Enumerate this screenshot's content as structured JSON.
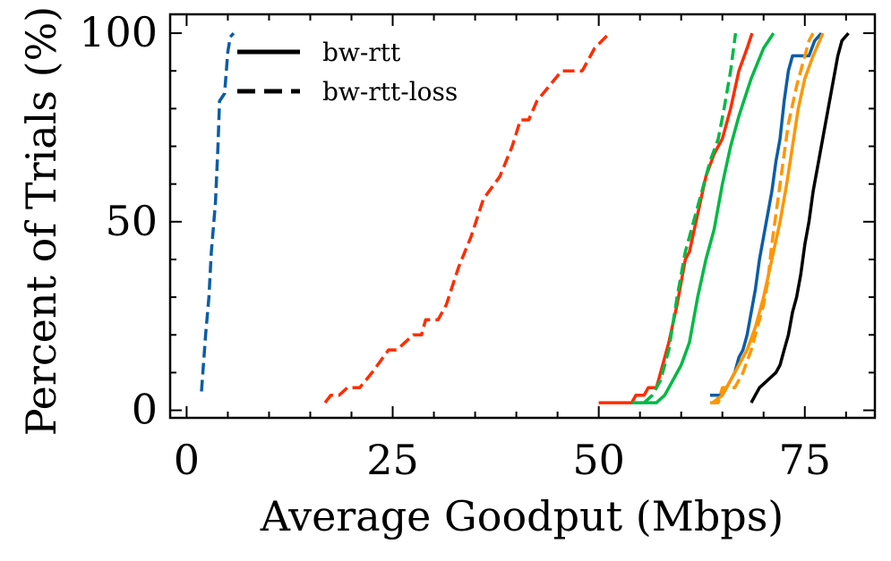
{
  "chart_data": {
    "type": "line",
    "title": "",
    "xlabel": "Average Goodput (Mbps)",
    "ylabel": "Percent of Trials (%)",
    "xlim": [
      -2,
      83.5
    ],
    "ylim": [
      -2,
      105
    ],
    "xticks": [
      0,
      25,
      50,
      75
    ],
    "yticks": [
      0,
      50,
      100
    ],
    "xtick_labels": [
      "0",
      "25",
      "50",
      "75"
    ],
    "ytick_labels": [
      "0",
      "50",
      "100"
    ],
    "legend_position": "top-left",
    "legend": [
      {
        "label": "bw-rtt",
        "style": "solid"
      },
      {
        "label": "bw-rtt-loss",
        "style": "dashed"
      }
    ],
    "series": [
      {
        "name": "blue bw-rtt-loss",
        "color": "#0C5DA5",
        "style": "dashed",
        "points": [
          [
            1.8,
            5
          ],
          [
            2.3,
            20
          ],
          [
            2.7,
            30
          ],
          [
            3.0,
            42
          ],
          [
            3.5,
            55
          ],
          [
            3.8,
            70
          ],
          [
            4.0,
            82
          ],
          [
            4.6,
            84
          ],
          [
            5.0,
            95
          ],
          [
            5.3,
            99
          ],
          [
            5.7,
            100
          ]
        ]
      },
      {
        "name": "red bw-rtt-loss",
        "color": "#FF2C00",
        "style": "dashed",
        "points": [
          [
            16.8,
            2
          ],
          [
            17.5,
            4
          ],
          [
            18.5,
            4
          ],
          [
            19.5,
            6
          ],
          [
            21,
            6
          ],
          [
            22.5,
            10
          ],
          [
            24.5,
            16
          ],
          [
            25.5,
            16
          ],
          [
            27.5,
            20
          ],
          [
            28.5,
            20
          ],
          [
            29,
            24
          ],
          [
            30.5,
            24
          ],
          [
            31.5,
            28
          ],
          [
            33,
            38
          ],
          [
            34.5,
            46
          ],
          [
            36,
            56
          ],
          [
            38,
            62
          ],
          [
            39.5,
            70
          ],
          [
            40.5,
            77
          ],
          [
            41.5,
            77
          ],
          [
            42.5,
            82
          ],
          [
            44,
            86
          ],
          [
            45.5,
            90
          ],
          [
            48,
            90
          ],
          [
            49.5,
            96
          ],
          [
            51.3,
            100
          ]
        ]
      },
      {
        "name": "red bw-rtt",
        "color": "#FF2C00",
        "style": "solid",
        "points": [
          [
            50,
            2
          ],
          [
            54,
            2
          ],
          [
            54.5,
            4
          ],
          [
            55.5,
            4
          ],
          [
            56,
            6
          ],
          [
            57,
            6
          ],
          [
            57.5,
            10
          ],
          [
            58.5,
            18
          ],
          [
            59.5,
            28
          ],
          [
            60.5,
            40
          ],
          [
            61,
            42
          ],
          [
            62,
            52
          ],
          [
            63,
            62
          ],
          [
            64,
            68
          ],
          [
            65,
            72
          ],
          [
            66,
            80
          ],
          [
            67,
            90
          ],
          [
            68,
            96
          ],
          [
            68.6,
            100
          ]
        ]
      },
      {
        "name": "green bw-rtt-loss",
        "color": "#00B945",
        "style": "dashed",
        "points": [
          [
            55.5,
            2
          ],
          [
            56.5,
            4
          ],
          [
            57.5,
            8
          ],
          [
            58.5,
            16
          ],
          [
            59.5,
            30
          ],
          [
            60.5,
            42
          ],
          [
            61.5,
            50
          ],
          [
            62.5,
            58
          ],
          [
            63.5,
            66
          ],
          [
            64.5,
            72
          ],
          [
            65.2,
            80
          ],
          [
            66,
            90
          ],
          [
            66.6,
            100
          ]
        ]
      },
      {
        "name": "green bw-rtt",
        "color": "#00B945",
        "style": "solid",
        "points": [
          [
            54,
            2
          ],
          [
            57,
            2
          ],
          [
            58,
            4
          ],
          [
            59,
            8
          ],
          [
            60,
            12
          ],
          [
            61,
            18
          ],
          [
            62,
            30
          ],
          [
            63,
            40
          ],
          [
            64,
            48
          ],
          [
            65,
            60
          ],
          [
            66,
            70
          ],
          [
            67,
            78
          ],
          [
            68.5,
            88
          ],
          [
            70,
            96
          ],
          [
            71.2,
            100
          ]
        ]
      },
      {
        "name": "blue bw-rtt",
        "color": "#0C5DA5",
        "style": "solid",
        "points": [
          [
            63.5,
            4
          ],
          [
            65,
            4
          ],
          [
            65.5,
            6
          ],
          [
            66.5,
            10
          ],
          [
            67,
            14
          ],
          [
            67.5,
            16
          ],
          [
            68,
            20
          ],
          [
            68.5,
            26
          ],
          [
            69,
            32
          ],
          [
            69.5,
            40
          ],
          [
            70,
            46
          ],
          [
            70.5,
            52
          ],
          [
            71,
            58
          ],
          [
            71.5,
            66
          ],
          [
            72,
            72
          ],
          [
            72.5,
            82
          ],
          [
            73,
            90
          ],
          [
            73.5,
            94
          ],
          [
            75.5,
            94
          ],
          [
            76.2,
            98
          ],
          [
            77,
            100
          ]
        ]
      },
      {
        "name": "orange bw-rtt-loss",
        "color": "#FF9500",
        "style": "dashed",
        "points": [
          [
            63.5,
            2
          ],
          [
            64.5,
            2
          ],
          [
            65,
            6
          ],
          [
            66.5,
            6
          ],
          [
            67.5,
            10
          ],
          [
            68.5,
            16
          ],
          [
            69.5,
            24
          ],
          [
            70,
            28
          ],
          [
            70.5,
            34
          ],
          [
            71,
            44
          ],
          [
            71.5,
            52
          ],
          [
            72,
            60
          ],
          [
            72.5,
            68
          ],
          [
            73,
            76
          ],
          [
            74,
            86
          ],
          [
            74.5,
            90
          ],
          [
            75,
            94
          ],
          [
            75.5,
            98
          ],
          [
            76,
            100
          ]
        ]
      },
      {
        "name": "orange bw-rtt",
        "color": "#FF9500",
        "style": "solid",
        "points": [
          [
            63.8,
            2
          ],
          [
            65,
            4
          ],
          [
            66,
            8
          ],
          [
            67,
            12
          ],
          [
            68,
            16
          ],
          [
            69,
            22
          ],
          [
            70,
            30
          ],
          [
            71,
            40
          ],
          [
            72,
            50
          ],
          [
            72.8,
            60
          ],
          [
            73.5,
            70
          ],
          [
            74.2,
            80
          ],
          [
            75,
            88
          ],
          [
            76,
            94
          ],
          [
            77.2,
            100
          ]
        ]
      },
      {
        "name": "black bw-rtt",
        "color": "#000000",
        "style": "solid",
        "points": [
          [
            68.5,
            2
          ],
          [
            69,
            4
          ],
          [
            69.5,
            6
          ],
          [
            70.5,
            8
          ],
          [
            71.5,
            10
          ],
          [
            72,
            12
          ],
          [
            72.5,
            16
          ],
          [
            73,
            20
          ],
          [
            73.5,
            26
          ],
          [
            74,
            30
          ],
          [
            74.5,
            36
          ],
          [
            75,
            44
          ],
          [
            75.5,
            50
          ],
          [
            76,
            58
          ],
          [
            76.5,
            64
          ],
          [
            77,
            70
          ],
          [
            77.5,
            76
          ],
          [
            78,
            82
          ],
          [
            78.5,
            88
          ],
          [
            79,
            94
          ],
          [
            79.5,
            98
          ],
          [
            80.3,
            100
          ]
        ]
      }
    ]
  }
}
